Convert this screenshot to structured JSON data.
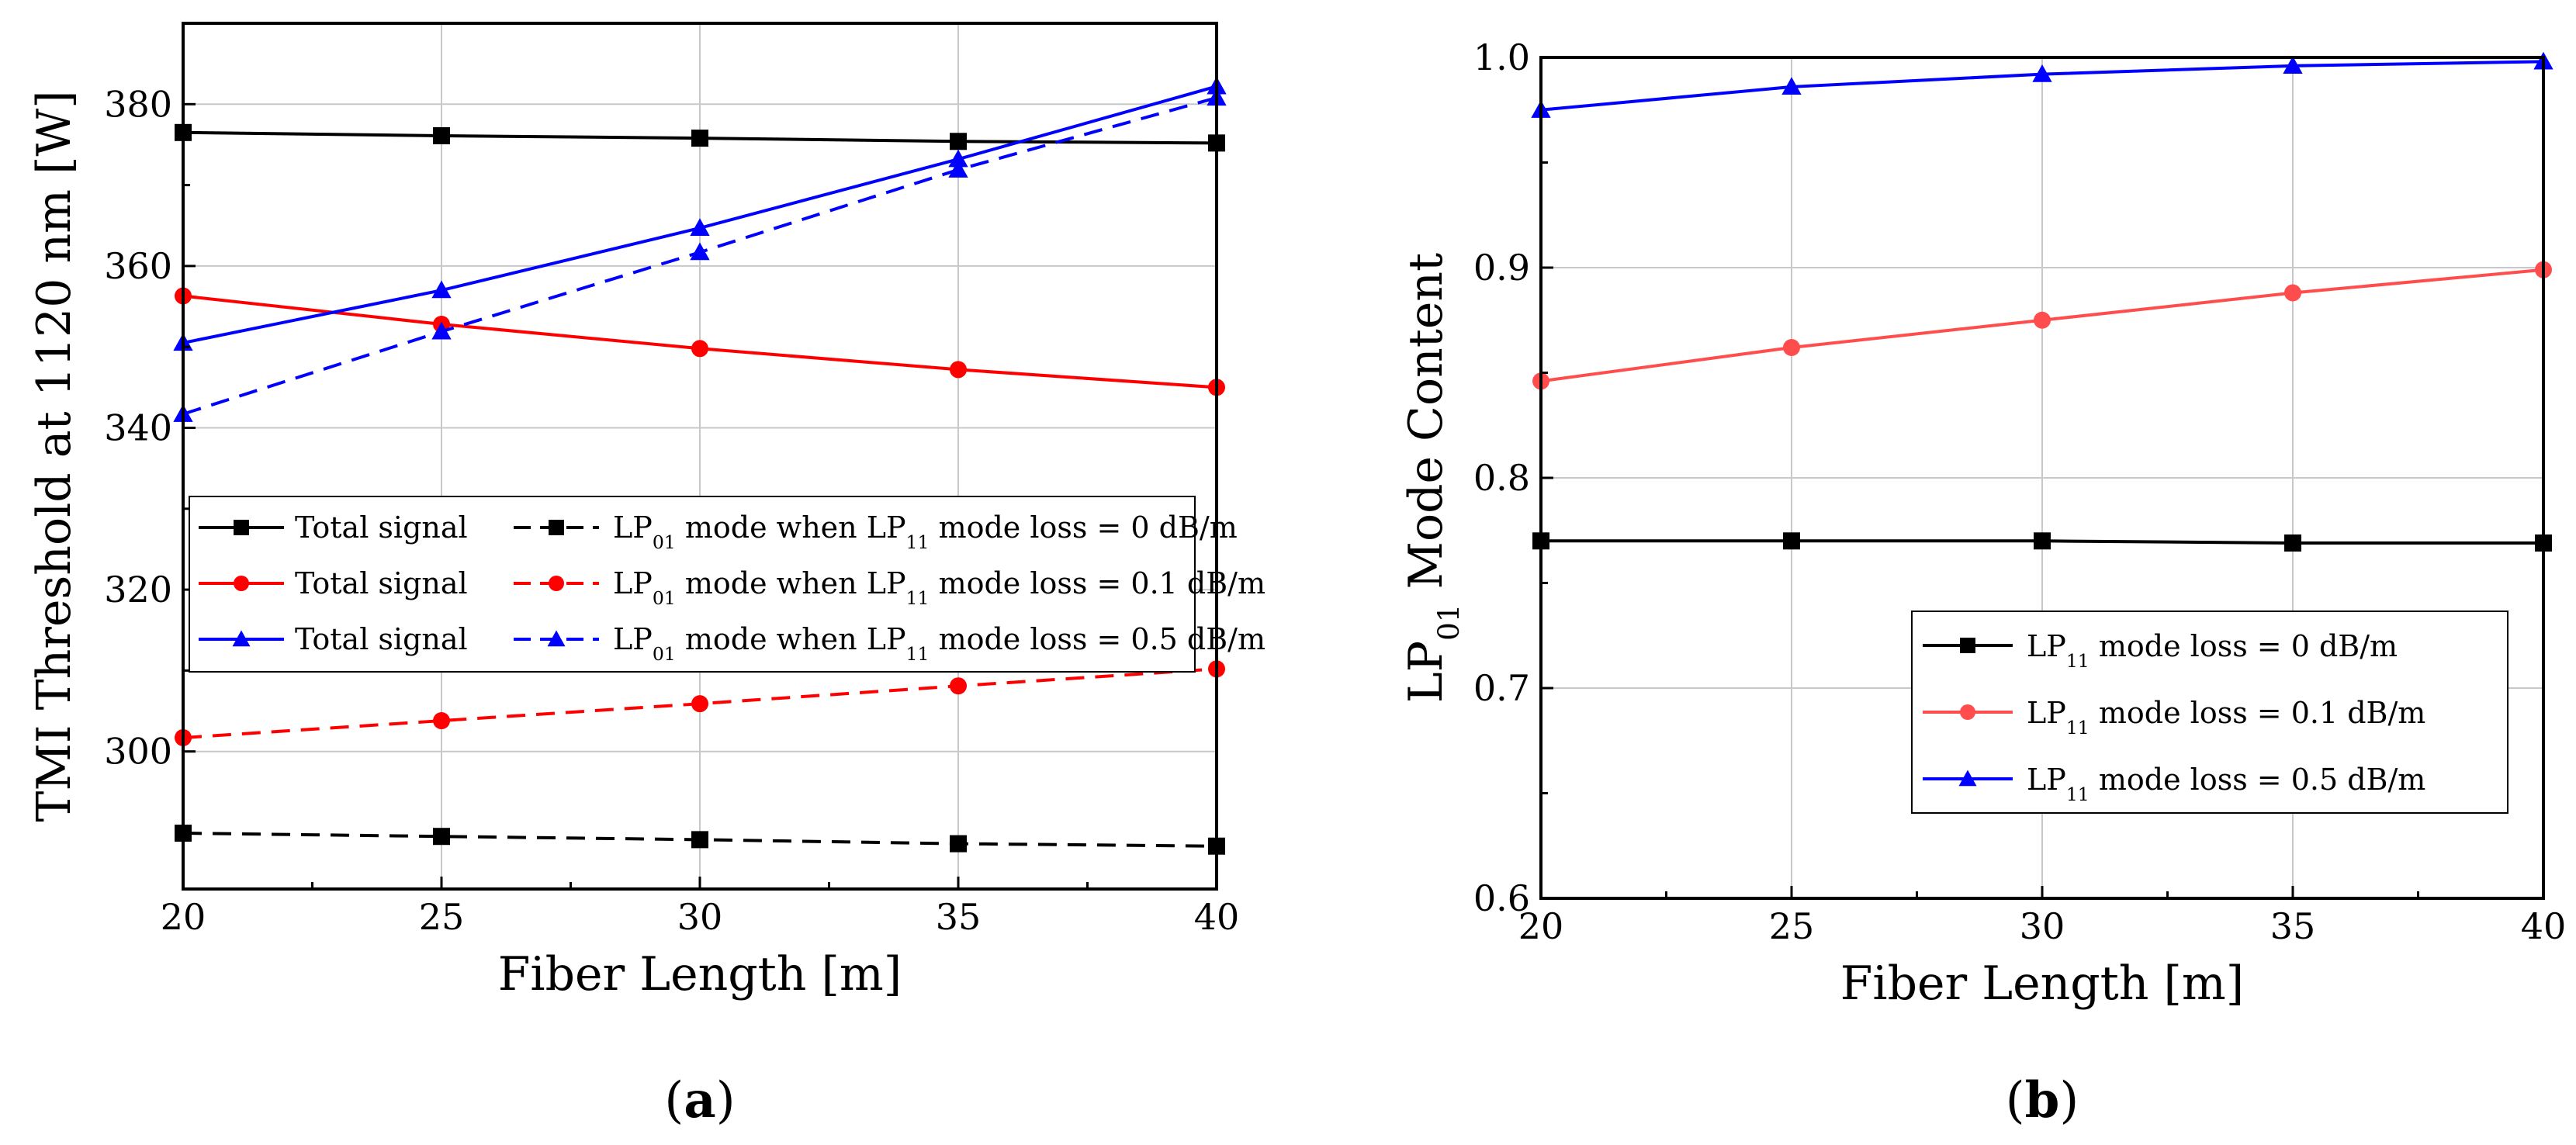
{
  "chart_data": [
    {
      "panel": "(a)",
      "panel_letter": "a",
      "type": "line",
      "xlabel": "Fiber Length [m]",
      "ylabel": "TMI Threshold at 1120 nm [W]",
      "xlim": [
        20,
        40
      ],
      "ylim": [
        283,
        390
      ],
      "xticks": [
        20,
        25,
        30,
        35,
        40
      ],
      "yticks": [
        300,
        320,
        340,
        360,
        380
      ],
      "grid": true,
      "legend_position": "center-right",
      "x": [
        20,
        25,
        30,
        35,
        40
      ],
      "series": [
        {
          "name": "Total signal",
          "color": "#000000",
          "marker": "square",
          "dash": "solid",
          "values": [
            376.5,
            376.1,
            375.8,
            375.4,
            375.2
          ]
        },
        {
          "name": "LP01 mode when LP11 mode loss = 0 dB/m",
          "color": "#000000",
          "marker": "square",
          "dash": "dashed",
          "values": [
            289.9,
            289.5,
            289.1,
            288.6,
            288.3
          ]
        },
        {
          "name": "Total signal",
          "color": "#ff0000",
          "marker": "circle",
          "dash": "solid",
          "values": [
            356.3,
            352.8,
            349.8,
            347.2,
            345.0
          ]
        },
        {
          "name": "LP01 mode when LP11 mode loss = 0.1 dB/m",
          "color": "#ff0000",
          "marker": "circle",
          "dash": "dashed",
          "values": [
            301.7,
            303.8,
            305.9,
            308.1,
            310.2
          ]
        },
        {
          "name": "Total signal",
          "color": "#0000ff",
          "marker": "triangle",
          "dash": "solid",
          "values": [
            350.5,
            357.0,
            364.7,
            373.2,
            382.2
          ]
        },
        {
          "name": "LP01 mode when LP11 mode loss = 0.5 dB/m",
          "color": "#0000ff",
          "marker": "triangle",
          "dash": "dashed",
          "values": [
            341.7,
            351.9,
            361.7,
            371.9,
            380.8
          ]
        }
      ],
      "legend": [
        {
          "solid_label": "Total signal",
          "dashed_label": [
            "LP",
            "01",
            " mode when LP",
            "11",
            " mode loss = 0 dB/m"
          ],
          "color": "#000000",
          "marker": "square"
        },
        {
          "solid_label": "Total signal",
          "dashed_label": [
            "LP",
            "01",
            " mode when LP",
            "11",
            " mode loss = 0.1 dB/m"
          ],
          "color": "#ff0000",
          "marker": "circle"
        },
        {
          "solid_label": "Total signal",
          "dashed_label": [
            "LP",
            "01",
            " mode when LP",
            "11",
            " mode loss = 0.5 dB/m"
          ],
          "color": "#0000ff",
          "marker": "triangle"
        }
      ]
    },
    {
      "panel": "(b)",
      "panel_letter": "b",
      "type": "line",
      "xlabel": "Fiber Length [m]",
      "ylabel": "LP01 Mode Content",
      "ylabel_parts": [
        "LP",
        "01",
        " Mode Content"
      ],
      "xlim": [
        20,
        40
      ],
      "ylim": [
        0.6,
        1.0
      ],
      "xticks": [
        20,
        25,
        30,
        35,
        40
      ],
      "yticks": [
        "0.6",
        "0.7",
        "0.8",
        "0.9",
        "1.0"
      ],
      "grid": true,
      "legend_position": "bottom-right",
      "x": [
        20,
        25,
        30,
        35,
        40
      ],
      "series": [
        {
          "name": "LP11 mode loss = 0 dB/m",
          "label_parts": [
            "LP",
            "11",
            " mode loss = 0 dB/m"
          ],
          "color": "#000000",
          "marker": "square",
          "values": [
            0.77,
            0.77,
            0.77,
            0.769,
            0.769
          ]
        },
        {
          "name": "LP11 mode loss = 0.1 dB/m",
          "label_parts": [
            "LP",
            "11",
            " mode loss = 0.1 dB/m"
          ],
          "color": "#ff4d4d",
          "marker": "circle",
          "values": [
            0.846,
            0.862,
            0.875,
            0.888,
            0.899
          ]
        },
        {
          "name": "LP11 mode loss = 0.5 dB/m",
          "label_parts": [
            "LP",
            "11",
            " mode loss = 0.5 dB/m"
          ],
          "color": "#0000ff",
          "marker": "triangle",
          "values": [
            0.975,
            0.986,
            0.992,
            0.996,
            0.998
          ]
        }
      ]
    }
  ]
}
